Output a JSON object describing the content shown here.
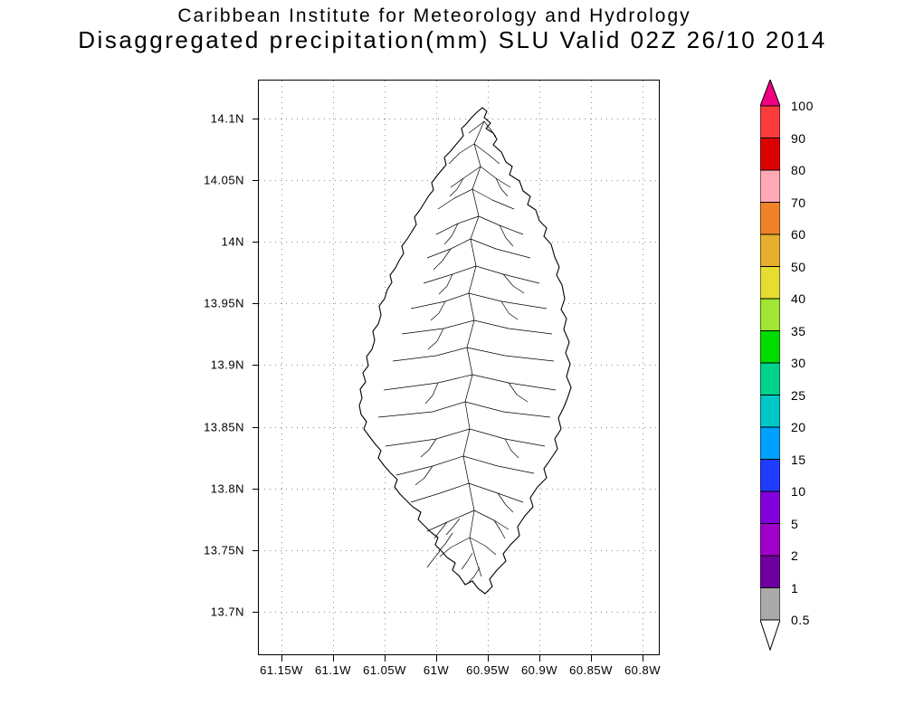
{
  "title": {
    "line1": "Caribbean Institute for Meteorology and Hydrology",
    "line2": "Disaggregated precipitation(mm) SLU Valid 02Z 26/10 2014"
  },
  "axes": {
    "lat_labels": [
      "14.1N",
      "14.05N",
      "14N",
      "13.95N",
      "13.9N",
      "13.85N",
      "13.8N",
      "13.75N",
      "13.7N"
    ],
    "lon_labels": [
      "61.15W",
      "61.1W",
      "61.05W",
      "61W",
      "60.95W",
      "60.9W",
      "60.85W",
      "60.8W"
    ]
  },
  "colorbar": {
    "labels": [
      "100",
      "90",
      "80",
      "70",
      "60",
      "50",
      "40",
      "35",
      "30",
      "25",
      "20",
      "15",
      "10",
      "5",
      "2",
      "1",
      "0.5"
    ],
    "top_arrow_color": "#f00082",
    "bottom_arrow_color": "#ffffff",
    "segment_colors": [
      "#fa3c3c",
      "#dc0000",
      "#ffaab4",
      "#f08228",
      "#e6af2d",
      "#e6dc32",
      "#a0e632",
      "#00dc00",
      "#00d28c",
      "#00c8c8",
      "#00a0ff",
      "#1e3cff",
      "#8200dc",
      "#a000c8",
      "#6e00a0",
      "#aaaaaa"
    ]
  },
  "map": {
    "region": "Saint Lucia"
  }
}
